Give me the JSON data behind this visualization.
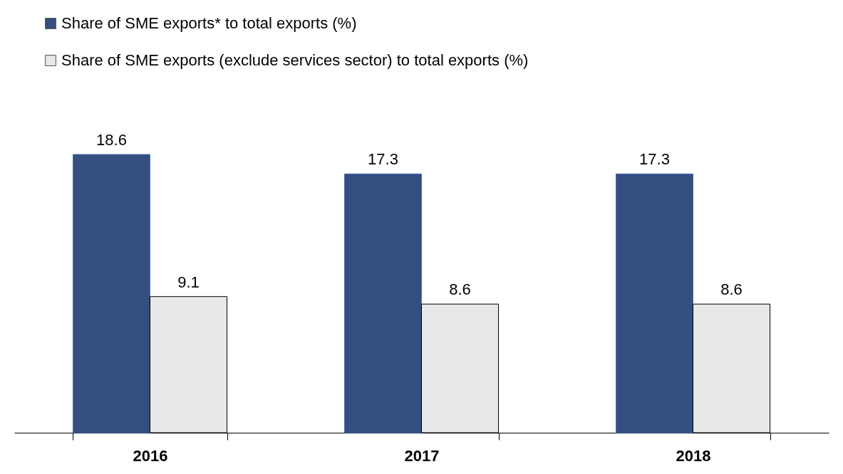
{
  "chart_data": {
    "type": "bar",
    "categories": [
      "2016",
      "2017",
      "2018"
    ],
    "series": [
      {
        "name": "Share of SME exports* to total exports (%)",
        "color": "#344e7f",
        "values": [
          18.6,
          17.3,
          17.3
        ]
      },
      {
        "name": "Share of SME exports (exclude services sector) to total exports (%)",
        "color": "#e8e8e8",
        "values": [
          9.1,
          8.6,
          8.6
        ]
      }
    ],
    "data_labels": true,
    "legend": "top left",
    "grid": false
  }
}
